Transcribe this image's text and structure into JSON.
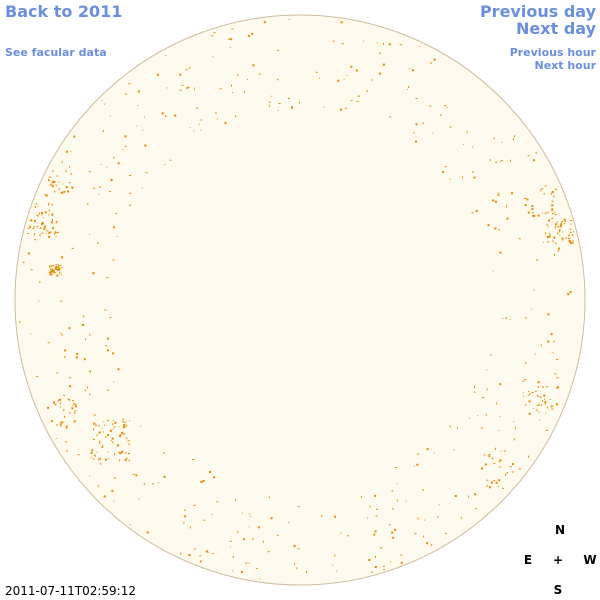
{
  "header": {
    "back_link": "Back to 2011",
    "facular_link": "See facular data",
    "previous_day": "Previous day",
    "next_day": "Next day",
    "previous_hour": "Previous hour",
    "next_hour": "Next hour"
  },
  "compass": {
    "north": "N",
    "east": "E",
    "center": "+",
    "west": "W",
    "south": "S"
  },
  "timestamp": "2011-07-11T02:59:12"
}
